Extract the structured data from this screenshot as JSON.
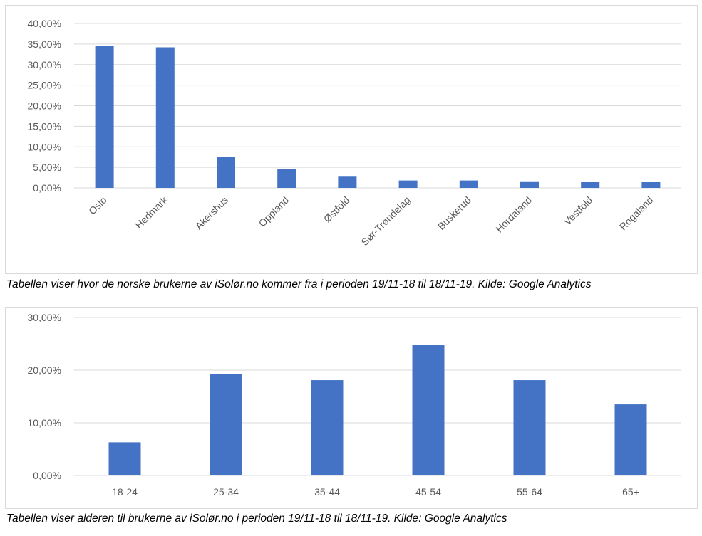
{
  "captions": {
    "chart1": "Tabellen viser hvor de norske brukerne av iSolør.no kommer fra i perioden 19/11-18 til 18/11-19. Kilde: Google Analytics",
    "chart2": "Tabellen viser alderen til brukerne av iSolør.no i perioden 19/11-18 til 18/11-19. Kilde: Google Analytics"
  },
  "colors": {
    "bar": "#4472c4",
    "grid": "#d9d9d9",
    "tick_text": "#595959"
  },
  "chart_data": [
    {
      "type": "bar",
      "title": "",
      "xlabel": "",
      "ylabel": "",
      "ylim": [
        0,
        40
      ],
      "yticks": [
        "0,00%",
        "5,00%",
        "10,00%",
        "15,00%",
        "20,00%",
        "25,00%",
        "30,00%",
        "35,00%",
        "40,00%"
      ],
      "ytick_values": [
        0,
        5,
        10,
        15,
        20,
        25,
        30,
        35,
        40
      ],
      "grid": true,
      "categories": [
        "Oslo",
        "Hedmark",
        "Akershus",
        "Oppland",
        "Østfold",
        "Sør-Trøndelag",
        "Buskerud",
        "Hordaland",
        "Vestfold",
        "Rogaland"
      ],
      "values": [
        34.6,
        34.2,
        7.6,
        4.6,
        2.9,
        1.8,
        1.8,
        1.6,
        1.5,
        1.5
      ]
    },
    {
      "type": "bar",
      "title": "",
      "xlabel": "",
      "ylabel": "",
      "ylim": [
        0,
        30
      ],
      "yticks": [
        "0,00%",
        "10,00%",
        "20,00%",
        "30,00%"
      ],
      "ytick_values": [
        0,
        10,
        20,
        30
      ],
      "grid": true,
      "categories": [
        "18-24",
        "25-34",
        "35-44",
        "45-54",
        "55-64",
        "65+"
      ],
      "values": [
        6.3,
        19.3,
        18.1,
        24.8,
        18.1,
        13.5
      ]
    }
  ]
}
